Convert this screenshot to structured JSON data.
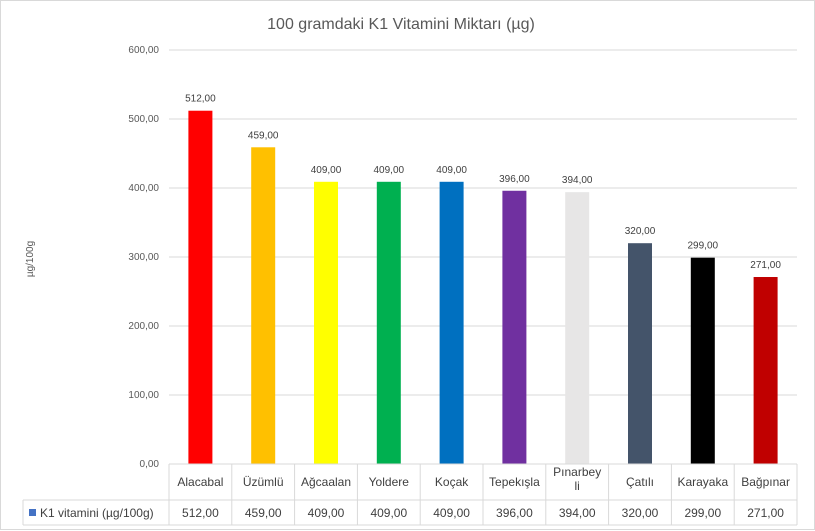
{
  "chart_data": {
    "type": "bar",
    "title": "100 gramdaki K1 Vitamini Miktarı (µg)",
    "ylabel": "µg/100g",
    "xlabel": "",
    "ylim": [
      0,
      600
    ],
    "yticks": [
      "0,00",
      "100,00",
      "200,00",
      "300,00",
      "400,00",
      "500,00",
      "600,00"
    ],
    "ytick_values": [
      0,
      100,
      200,
      300,
      400,
      500,
      600
    ],
    "grid": true,
    "legend": "data-table-left",
    "categories": [
      [
        "Alacabal"
      ],
      [
        "Üzümlü"
      ],
      [
        "Ağcaalan"
      ],
      [
        "Yoldere"
      ],
      [
        "Koçak"
      ],
      [
        "Tepekışla"
      ],
      [
        "Pınarbey",
        "li"
      ],
      [
        "Çatılı"
      ],
      [
        "Karayaka"
      ],
      [
        "Bağpınar"
      ]
    ],
    "series": [
      {
        "name": "K1 vitamini (µg/100g)",
        "values": [
          512,
          459,
          409,
          409,
          409,
          396,
          394,
          320,
          299,
          271
        ],
        "labels": [
          "512,00",
          "459,00",
          "409,00",
          "409,00",
          "409,00",
          "396,00",
          "394,00",
          "320,00",
          "299,00",
          "271,00"
        ],
        "legend_color": "#4472c4"
      }
    ],
    "bar_colors": [
      "#ff0000",
      "#ffc000",
      "#ffff00",
      "#00b050",
      "#0070c0",
      "#7030a0",
      "#e7e6e6",
      "#44546a",
      "#000000",
      "#c00000"
    ]
  }
}
